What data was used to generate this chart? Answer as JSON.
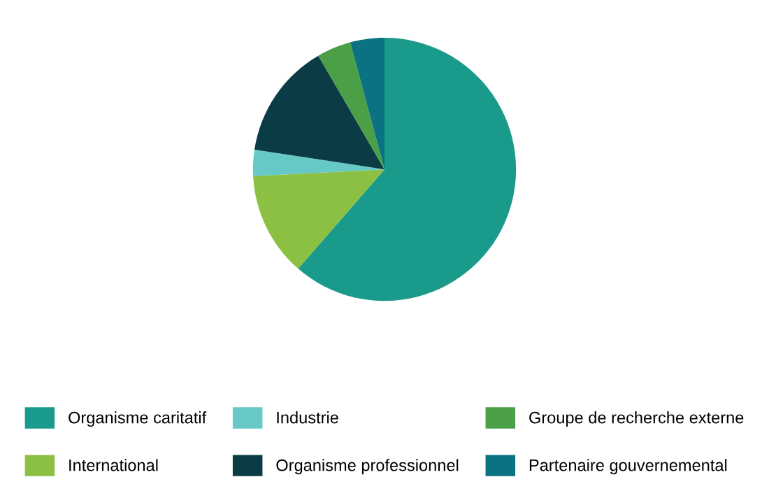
{
  "chart_data": {
    "type": "pie",
    "categories": [
      "Organisme caritatif",
      "International",
      "Industrie",
      "Organisme professionnel",
      "Groupe de recherche externe",
      "Partenaire gouvernemental"
    ],
    "values": [
      61.4,
      12.8,
      3.2,
      14.2,
      4.2,
      4.2
    ],
    "colors": [
      "#1a9a8b",
      "#8cc043",
      "#66c9c6",
      "#0b3b45",
      "#4ba047",
      "#0a7281"
    ],
    "legend": "bottom"
  }
}
